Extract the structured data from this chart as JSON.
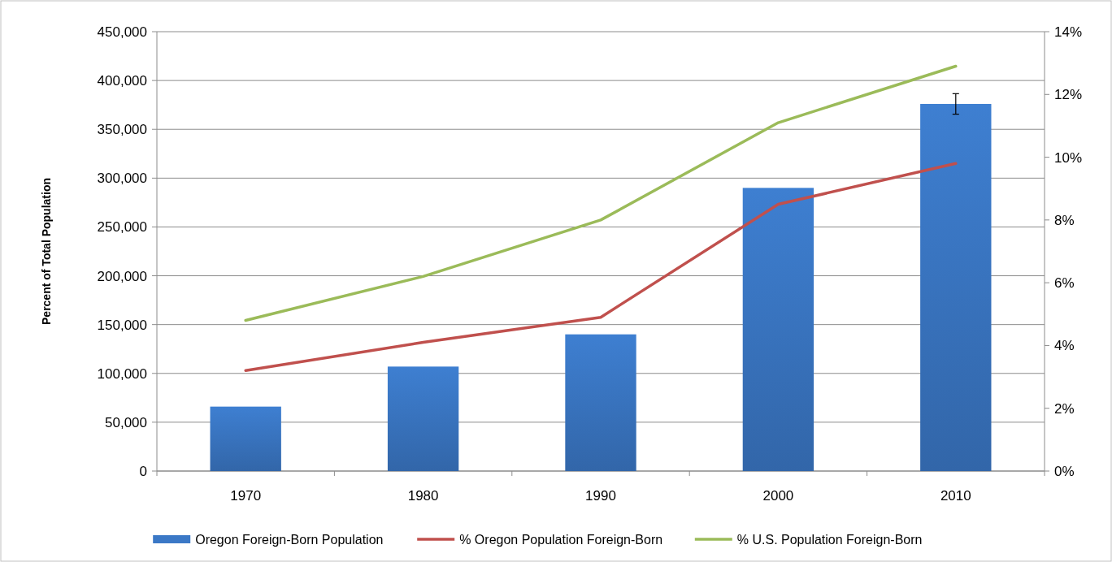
{
  "chart_data": {
    "type": "bar",
    "ylabel": "Percent of Total Population",
    "categories": [
      "1970",
      "1980",
      "1990",
      "2000",
      "2010"
    ],
    "series": [
      {
        "name": "Oregon Foreign-Born Population",
        "color": "#3b78c6",
        "values": [
          66000,
          107000,
          140000,
          290000,
          376000
        ],
        "errors": [
          null,
          null,
          null,
          null,
          10500
        ]
      },
      {
        "name": "% Oregon Population Foreign-Born",
        "type": "line",
        "axis": "y2",
        "color": "#c0504d",
        "values": [
          3.2,
          4.1,
          4.9,
          8.5,
          9.8
        ]
      },
      {
        "name": "% U.S. Population Foreign-Born",
        "type": "line",
        "axis": "y2",
        "color": "#9bbb59",
        "values": [
          4.8,
          6.2,
          8.0,
          11.1,
          12.9
        ]
      }
    ],
    "ylim": [
      0,
      450000
    ],
    "yticks": [
      {
        "value": 0,
        "label": "0"
      },
      {
        "value": 50000,
        "label": "50,000"
      },
      {
        "value": 100000,
        "label": "100,000"
      },
      {
        "value": 150000,
        "label": "150,000"
      },
      {
        "value": 200000,
        "label": "200,000"
      },
      {
        "value": 250000,
        "label": "250,000"
      },
      {
        "value": 300000,
        "label": "300,000"
      },
      {
        "value": 350000,
        "label": "350,000"
      },
      {
        "value": 400000,
        "label": "400,000"
      },
      {
        "value": 450000,
        "label": "450,000"
      }
    ],
    "y2lim": [
      0,
      14
    ],
    "y2ticks": [
      {
        "value": 0,
        "label": "0%"
      },
      {
        "value": 2,
        "label": "2%"
      },
      {
        "value": 4,
        "label": "4%"
      },
      {
        "value": 6,
        "label": "6%"
      },
      {
        "value": 8,
        "label": "8%"
      },
      {
        "value": 10,
        "label": "10%"
      },
      {
        "value": 12,
        "label": "12%"
      },
      {
        "value": 14,
        "label": "14%"
      }
    ],
    "grid": "y",
    "legend": "bottom",
    "marker": "none",
    "line_style": "solid"
  }
}
